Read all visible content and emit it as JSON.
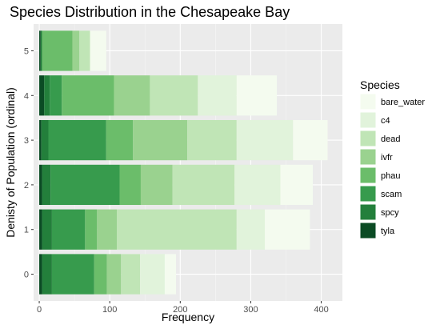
{
  "chart_data": {
    "type": "bar",
    "orientation": "horizontal",
    "stacked": true,
    "title": "Species Distribution in the Chesapeake Bay",
    "xlabel": "Frequency",
    "ylabel": "Denisty of Population (ordinal)",
    "categories": [
      "0",
      "1",
      "2",
      "3",
      "4",
      "5"
    ],
    "xlim": [
      -8,
      430
    ],
    "xticks": [
      0,
      100,
      200,
      300,
      400
    ],
    "grid": true,
    "legend_title": "Species",
    "legend_position": "right",
    "series": [
      {
        "name": "tyla",
        "color": "#0b4b24",
        "values": [
          4,
          4,
          4,
          3,
          7,
          2
        ]
      },
      {
        "name": "spcy",
        "color": "#237f3b",
        "values": [
          14,
          14,
          12,
          10,
          8,
          2
        ]
      },
      {
        "name": "scam",
        "color": "#379b4d",
        "values": [
          60,
          47,
          98,
          82,
          17,
          0
        ]
      },
      {
        "name": "phau",
        "color": "#6bbd6a",
        "values": [
          18,
          17,
          30,
          38,
          74,
          43
        ]
      },
      {
        "name": "ivfr",
        "color": "#9ad28f",
        "values": [
          20,
          28,
          45,
          77,
          51,
          10
        ]
      },
      {
        "name": "dead",
        "color": "#c0e5b6",
        "values": [
          27,
          170,
          88,
          70,
          68,
          15
        ]
      },
      {
        "name": "c4",
        "color": "#e1f3db",
        "values": [
          35,
          40,
          65,
          80,
          55,
          0
        ]
      },
      {
        "name": "bare_water",
        "color": "#f4fbef",
        "values": [
          16,
          64,
          46,
          49,
          57,
          23
        ]
      }
    ]
  }
}
